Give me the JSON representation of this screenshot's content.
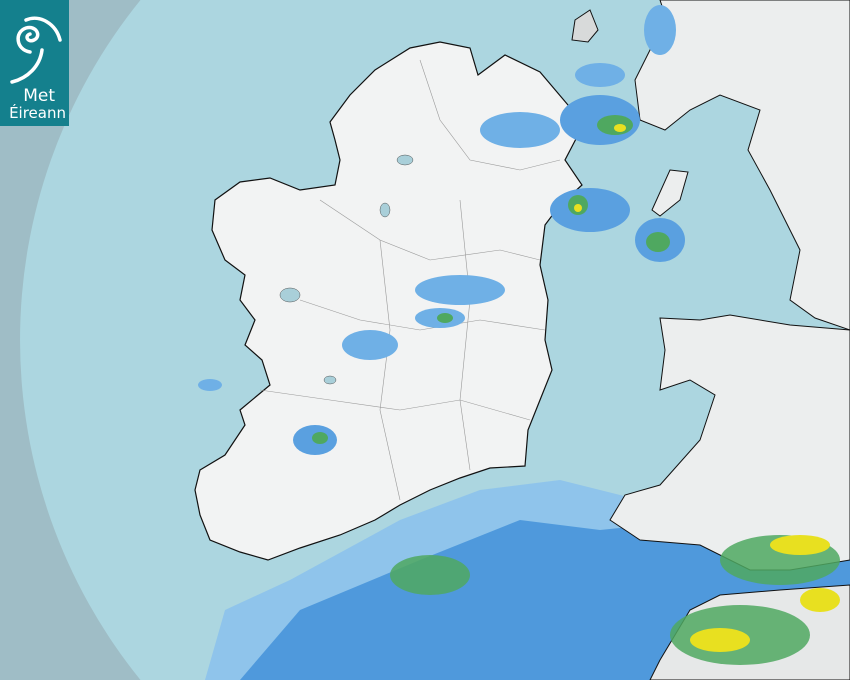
{
  "logo": {
    "line1": "Met",
    "line2": "Éireann",
    "color": "#14808d"
  },
  "map": {
    "type": "weather radar",
    "colors": {
      "outside_range": "#9fbdc6",
      "sea": "#acd6e0",
      "land": "#f2f3f3",
      "light_rain": "#5aa0e0",
      "moderate_rain": "#2f8c4a",
      "heavy_rain": "#e8e020"
    }
  }
}
